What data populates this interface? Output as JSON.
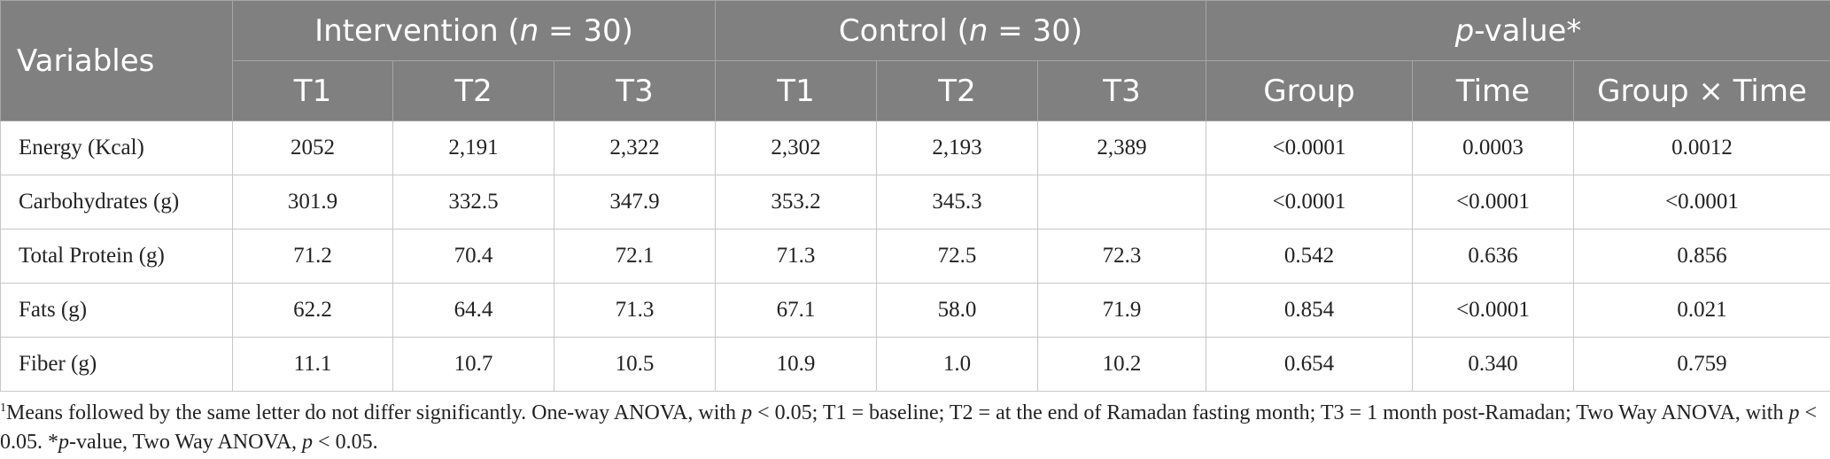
{
  "header": {
    "variables": "Variables",
    "groups": {
      "intervention_prefix": "Intervention (",
      "intervention_n": "n",
      "intervention_suffix": " = 30)",
      "control_prefix": "Control (",
      "control_n": "n",
      "control_suffix": " = 30)",
      "pvalue_p": "p",
      "pvalue_suffix": "-value*"
    },
    "subcolumns": [
      "T1",
      "T2",
      "T3",
      "T1",
      "T2",
      "T3",
      "Group",
      "Time",
      "Group × Time"
    ]
  },
  "rows": [
    {
      "variable": "Energy (Kcal)",
      "cells": [
        "2052",
        "2,191",
        "2,322",
        "2,302",
        "2,193",
        "2,389",
        "<0.0001",
        "0.0003",
        "0.0012"
      ]
    },
    {
      "variable": "Carbohydrates (g)",
      "cells": [
        "301.9",
        "332.5",
        "347.9",
        "353.2",
        "345.3",
        "",
        "<0.0001",
        "<0.0001",
        "<0.0001"
      ]
    },
    {
      "variable": "Total Protein (g)",
      "cells": [
        "71.2",
        "70.4",
        "72.1",
        "71.3",
        "72.5",
        "72.3",
        "0.542",
        "0.636",
        "0.856"
      ]
    },
    {
      "variable": "Fats (g)",
      "cells": [
        "62.2",
        "64.4",
        "71.3",
        "67.1",
        "58.0",
        "71.9",
        "0.854",
        "<0.0001",
        "0.021"
      ]
    },
    {
      "variable": "Fiber (g)",
      "cells": [
        "11.1",
        "10.7",
        "10.5",
        "10.9",
        "1.0",
        "10.2",
        "0.654",
        "0.340",
        "0.759"
      ]
    }
  ],
  "footnote": {
    "marker": "1",
    "part1": "Means followed by the same letter do not differ significantly. One-way ANOVA, with ",
    "p1": "p",
    "part2": " < 0.05; T1 = baseline; T2 = at the end of Ramadan fasting month; T3 = 1 month post-Ramadan; Two Way ANOVA, with ",
    "p2": "p",
    "part3": " < 0.05. *",
    "p3": "p",
    "part4": "-value, Two Way ANOVA, ",
    "p4": "p",
    "part5": " < 0.05."
  }
}
